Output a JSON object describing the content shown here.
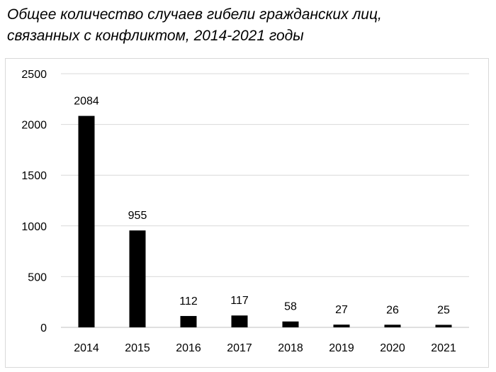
{
  "chart_data": {
    "type": "bar",
    "title_lines": [
      "Общее количество случаев гибели гражданских лиц,",
      "связанных с конфликтом, 2014-2021 годы"
    ],
    "categories": [
      "2014",
      "2015",
      "2016",
      "2017",
      "2018",
      "2019",
      "2020",
      "2021"
    ],
    "values": [
      2084,
      955,
      112,
      117,
      58,
      27,
      26,
      25
    ],
    "data_labels": [
      "2084",
      "955",
      "112",
      "117",
      "58",
      "27",
      "26",
      "25"
    ],
    "yticks": [
      "0",
      "500",
      "1000",
      "1500",
      "2000",
      "2500"
    ],
    "ylim": [
      0,
      2500
    ],
    "grid": true,
    "legend": "none",
    "colors": {
      "bar": "#000000",
      "grid": "#d9d9d9",
      "axis": "#bfbfbf"
    }
  }
}
